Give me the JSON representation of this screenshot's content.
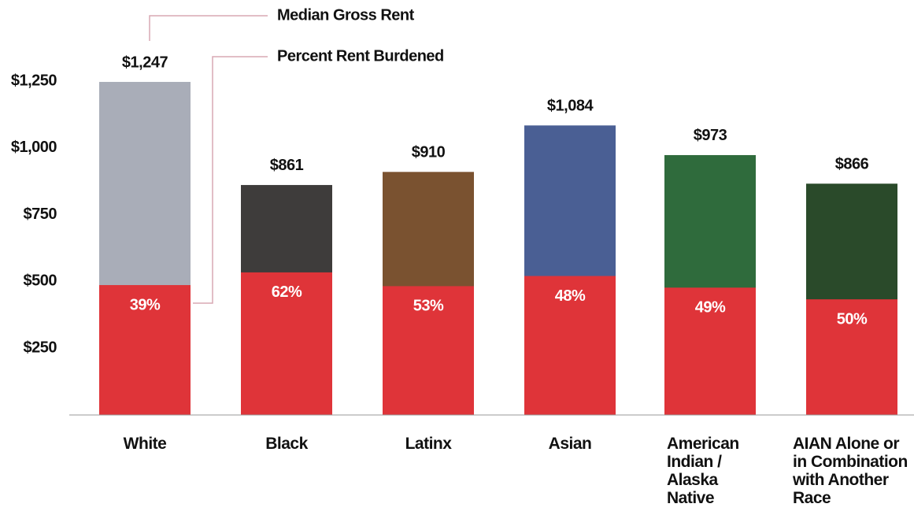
{
  "chart_data": {
    "type": "bar",
    "categories": [
      "White",
      "Black",
      "Latinx",
      "Asian",
      "American Indian / Alaska Native",
      "AIAN Alone or in Combination with Another Race"
    ],
    "series": [
      {
        "name": "Median Gross Rent",
        "colors": [
          "#a9adb8",
          "#3e3c3b",
          "#7a5230",
          "#4a5f94",
          "#2f6b3c",
          "#2a4a2a"
        ],
        "values": [
          1247,
          861,
          910,
          1084,
          973,
          866
        ],
        "value_labels": [
          "$1,247",
          "$861",
          "$910",
          "$1,084",
          "$973",
          "$866"
        ]
      },
      {
        "name": "Percent Rent Burdened",
        "color": "#df3439",
        "values": [
          39,
          62,
          53,
          48,
          49,
          50
        ],
        "value_labels": [
          "39%",
          "62%",
          "53%",
          "48%",
          "49%",
          "50%"
        ]
      }
    ],
    "ylim": [
      0,
      1250
    ],
    "yticks": [
      {
        "value": 250,
        "label": "$250"
      },
      {
        "value": 500,
        "label": "$500"
      },
      {
        "value": 750,
        "label": "$750"
      },
      {
        "value": 1000,
        "label": "$1,000"
      },
      {
        "value": 1250,
        "label": "$1,250"
      }
    ]
  }
}
